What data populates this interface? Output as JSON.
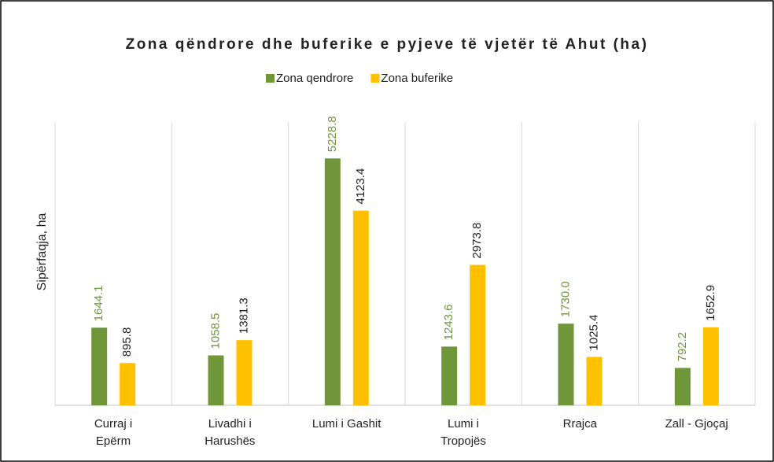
{
  "chart_data": {
    "type": "bar",
    "title": "Zona qëndrore dhe buferike e pyjeve të vjetër të Ahut (ha)",
    "y_label": "Sipërfaqja, ha",
    "categories": [
      "Curraj i\nEpërm",
      "Livadhi i\nHarushës",
      "Lumi i Gashit",
      "Lumi i\nTropojës",
      "Rrajca",
      "Zall - Gjoçaj"
    ],
    "series": [
      {
        "name": "Zona qendrore",
        "color": "#70963a",
        "values": [
          1644.1,
          1058.5,
          5228.8,
          1243.6,
          1730.0,
          792.2
        ],
        "value_labels": [
          "1644.1",
          "1058.5",
          "5228.8",
          "1243.6",
          "1730.0",
          "792.2"
        ]
      },
      {
        "name": "Zona buferike",
        "color": "#ffc000",
        "values": [
          895.8,
          1381.3,
          4123.4,
          2973.8,
          1025.4,
          1652.9
        ],
        "value_labels": [
          "895.8",
          "1381.3",
          "4123.4",
          "2973.8",
          "1025.4",
          "1652.9"
        ]
      }
    ],
    "ylim": [
      0,
      6000
    ],
    "grid": "vertical",
    "legend": "top"
  }
}
